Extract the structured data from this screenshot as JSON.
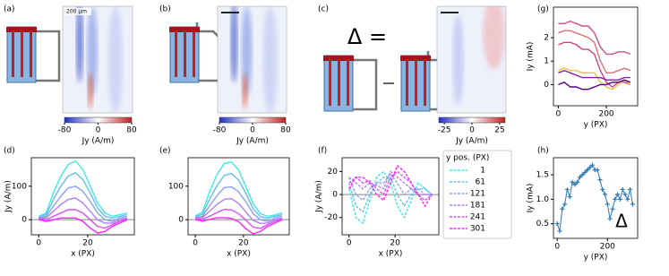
{
  "chart_data": [
    {
      "type": "image",
      "panel": "(a)",
      "scalebar": "200 µm",
      "clim": [
        -80,
        80
      ],
      "cticks": [
        -80,
        0,
        80
      ],
      "colorbar_label": "Jy (A/m)"
    },
    {
      "type": "image",
      "panel": "(b)",
      "clim": [
        -80,
        80
      ],
      "cticks": [
        -80,
        0,
        80
      ],
      "colorbar_label": "Jy (A/m)"
    },
    {
      "type": "image",
      "panel": "(c)",
      "title": "Δ =",
      "clim": [
        -30,
        30
      ],
      "cticks": [
        -25,
        0,
        25
      ],
      "colorbar_label": "Jy (A/m)"
    },
    {
      "type": "line",
      "panel": "(g)",
      "xlabel": "y (PX)",
      "ylabel": "Iy (mA)",
      "x": [
        0,
        25,
        50,
        75,
        100,
        125,
        150,
        175,
        200,
        225,
        250,
        275,
        300
      ],
      "xlim": [
        -20,
        330
      ],
      "ylim": [
        -0.9,
        3.3
      ],
      "xticks": [
        0,
        200
      ],
      "yticks": [
        0,
        1,
        2
      ],
      "series": [
        {
          "color": "#c8508c",
          "values": [
            2.6,
            2.6,
            2.7,
            2.6,
            2.5,
            2.5,
            2.2,
            1.6,
            1.3,
            1.3,
            1.4,
            1.4,
            1.3
          ]
        },
        {
          "color": "#e07070",
          "values": [
            2.2,
            2.3,
            2.3,
            2.2,
            2.1,
            2.0,
            1.8,
            1.0,
            0.5,
            0.5,
            0.6,
            0.7,
            0.6
          ]
        },
        {
          "color": "#d04080",
          "values": [
            1.7,
            1.8,
            1.8,
            1.7,
            1.5,
            1.5,
            1.3,
            0.6,
            0.1,
            -0.1,
            0.1,
            0.1,
            0.0
          ]
        },
        {
          "color": "#f0c040",
          "values": [
            0.6,
            0.7,
            0.6,
            0.6,
            0.5,
            0.5,
            0.5,
            0.1,
            -0.1,
            -0.2,
            0.0,
            0.2,
            0.0
          ]
        },
        {
          "color": "#8020a0",
          "values": [
            0.5,
            0.6,
            0.5,
            0.4,
            0.3,
            0.3,
            0.3,
            0.3,
            0.2,
            0.2,
            0.2,
            0.3,
            0.3
          ]
        },
        {
          "color": "#500080",
          "values": [
            0.0,
            0.1,
            -0.1,
            -0.1,
            -0.2,
            -0.2,
            -0.1,
            0.0,
            0.0,
            0.1,
            0.1,
            0.2,
            0.1
          ]
        }
      ]
    },
    {
      "type": "line",
      "panel": "(d)",
      "xlabel": "x (PX)",
      "ylabel": "Jy (A/m)",
      "zero_line": true,
      "x": [
        0,
        3,
        6,
        9,
        12,
        15,
        18,
        21,
        24,
        27,
        30,
        33,
        36
      ],
      "xlim": [
        -3,
        39
      ],
      "ylim": [
        -45,
        185
      ],
      "xticks": [
        0,
        20
      ],
      "yticks": [
        0,
        100
      ],
      "series": [
        {
          "color": "#40e8e8",
          "values": [
            10,
            20,
            80,
            130,
            165,
            175,
            150,
            100,
            50,
            20,
            10,
            15,
            20
          ]
        },
        {
          "color": "#60c0f0",
          "values": [
            8,
            15,
            60,
            100,
            130,
            140,
            120,
            80,
            35,
            10,
            5,
            10,
            15
          ]
        },
        {
          "color": "#8aa0f0",
          "values": [
            5,
            10,
            40,
            70,
            95,
            100,
            85,
            55,
            20,
            0,
            -5,
            5,
            10
          ]
        },
        {
          "color": "#b080f0",
          "values": [
            5,
            5,
            25,
            45,
            60,
            65,
            50,
            25,
            0,
            -10,
            -10,
            0,
            5
          ]
        },
        {
          "color": "#d850f0",
          "values": [
            3,
            0,
            10,
            20,
            30,
            30,
            20,
            0,
            -20,
            -25,
            -15,
            -5,
            3
          ]
        },
        {
          "color": "#ff20ff",
          "values": [
            0,
            -5,
            0,
            5,
            5,
            5,
            -5,
            -25,
            -40,
            -35,
            -20,
            -10,
            0
          ]
        }
      ]
    },
    {
      "type": "line",
      "panel": "(e)",
      "xlabel": "x (PX)",
      "zero_line": true,
      "x": [
        0,
        3,
        6,
        9,
        12,
        15,
        18,
        21,
        24,
        27,
        30,
        33,
        36
      ],
      "xlim": [
        -3,
        39
      ],
      "ylim": [
        -45,
        185
      ],
      "xticks": [
        0,
        20
      ],
      "yticks": [
        0,
        100
      ],
      "series": [
        {
          "color": "#40e8e8",
          "values": [
            12,
            22,
            85,
            135,
            168,
            172,
            148,
            98,
            48,
            18,
            10,
            14,
            20
          ]
        },
        {
          "color": "#60c0f0",
          "values": [
            9,
            16,
            62,
            102,
            132,
            138,
            118,
            78,
            33,
            9,
            5,
            10,
            15
          ]
        },
        {
          "color": "#8aa0f0",
          "values": [
            6,
            10,
            42,
            72,
            96,
            98,
            83,
            53,
            18,
            0,
            -5,
            5,
            10
          ]
        },
        {
          "color": "#b080f0",
          "values": [
            5,
            6,
            26,
            46,
            61,
            63,
            48,
            23,
            -2,
            -11,
            -10,
            0,
            5
          ]
        },
        {
          "color": "#d850f0",
          "values": [
            3,
            1,
            11,
            21,
            31,
            29,
            18,
            -2,
            -22,
            -26,
            -15,
            -5,
            3
          ]
        },
        {
          "color": "#ff20ff",
          "values": [
            0,
            -4,
            1,
            6,
            6,
            4,
            -6,
            -27,
            -42,
            -35,
            -20,
            -10,
            0
          ]
        }
      ]
    },
    {
      "type": "line",
      "panel": "(f)",
      "xlabel": "x (PX)",
      "ylabel": "Jy (A/m)",
      "zero_line": true,
      "dashed": true,
      "legend_title": "y pos. (PX)",
      "x": [
        0,
        3,
        6,
        9,
        12,
        15,
        18,
        21,
        24,
        27,
        30,
        33,
        36
      ],
      "xlim": [
        -3,
        39
      ],
      "ylim": [
        -35,
        32
      ],
      "xticks": [
        0,
        20
      ],
      "yticks": [
        -20,
        0,
        20
      ],
      "series": [
        {
          "name": "1",
          "color": "#40e8e8",
          "values": [
            5,
            -20,
            -25,
            -5,
            15,
            20,
            10,
            -10,
            -20,
            -5,
            10,
            5,
            0
          ]
        },
        {
          "name": "61",
          "color": "#60c0f0",
          "values": [
            10,
            -10,
            -15,
            0,
            10,
            15,
            15,
            0,
            -10,
            0,
            5,
            5,
            0
          ]
        },
        {
          "name": "121",
          "color": "#8aa0f0",
          "values": [
            15,
            0,
            -5,
            5,
            10,
            10,
            18,
            10,
            0,
            5,
            5,
            0,
            0
          ]
        },
        {
          "name": "181",
          "color": "#b080f0",
          "values": [
            15,
            10,
            5,
            10,
            8,
            5,
            20,
            15,
            10,
            5,
            0,
            0,
            0
          ]
        },
        {
          "name": "241",
          "color": "#d850f0",
          "values": [
            10,
            15,
            10,
            12,
            5,
            0,
            15,
            20,
            15,
            10,
            0,
            -5,
            0
          ]
        },
        {
          "name": "301",
          "color": "#ff20ff",
          "values": [
            5,
            15,
            15,
            10,
            0,
            -5,
            10,
            25,
            20,
            10,
            0,
            -10,
            0
          ]
        }
      ]
    },
    {
      "type": "line",
      "panel": "(h)",
      "xlabel": "y (PX)",
      "ylabel": "Iy (mA)",
      "annotation": "Δ",
      "markers": true,
      "x": [
        0,
        10,
        20,
        30,
        40,
        50,
        60,
        70,
        80,
        90,
        100,
        110,
        120,
        130,
        140,
        150,
        160,
        170,
        180,
        190,
        200,
        210,
        220,
        230,
        240,
        250,
        260,
        270,
        280,
        290,
        300
      ],
      "xlim": [
        -15,
        320
      ],
      "ylim": [
        0.2,
        1.85
      ],
      "xticks": [
        0,
        200
      ],
      "yticks": [
        {
          "value": 0.5,
          "label": "0.5"
        },
        {
          "value": 1,
          "label": "1.0"
        },
        {
          "value": 1.5,
          "label": "1.5"
        }
      ],
      "series": [
        {
          "color": "#2f78b4",
          "values": [
            0.5,
            0.35,
            0.8,
            0.9,
            1.2,
            1.05,
            1.35,
            1.3,
            1.35,
            1.45,
            1.5,
            1.55,
            1.6,
            1.65,
            1.7,
            1.6,
            1.6,
            1.4,
            1.2,
            1.1,
            0.9,
            0.6,
            0.8,
            1.0,
            1.1,
            1.0,
            1.2,
            1.1,
            1.0,
            1.2,
            0.9
          ]
        }
      ]
    }
  ]
}
